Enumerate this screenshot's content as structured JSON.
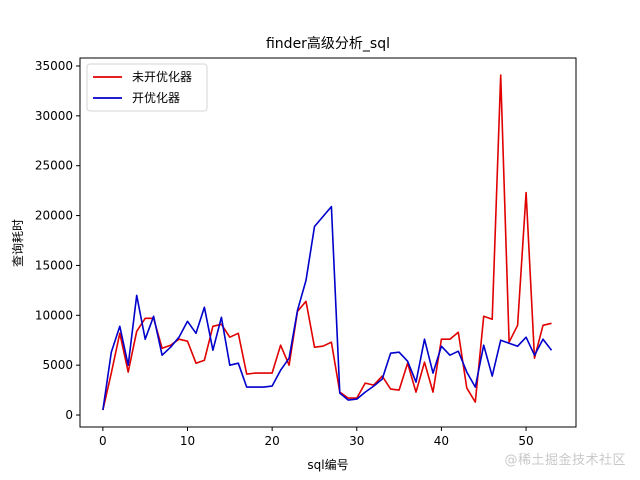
{
  "chart_data": {
    "type": "line",
    "title": "finder高级分析_sql",
    "xlabel": "sql编号",
    "ylabel": "查询耗时",
    "xlim": [
      -2.7,
      55.9
    ],
    "ylim": [
      -1200,
      35800
    ],
    "xticks": [
      0,
      10,
      20,
      30,
      40,
      50
    ],
    "yticks": [
      0,
      5000,
      10000,
      15000,
      20000,
      25000,
      30000,
      35000
    ],
    "grid": false,
    "legend_position": "upper left",
    "x": [
      0,
      1,
      2,
      3,
      4,
      5,
      6,
      7,
      8,
      9,
      10,
      11,
      12,
      13,
      14,
      15,
      16,
      17,
      18,
      19,
      20,
      21,
      22,
      23,
      24,
      25,
      26,
      27,
      28,
      29,
      30,
      31,
      32,
      33,
      34,
      35,
      36,
      37,
      38,
      39,
      40,
      41,
      42,
      43,
      44,
      45,
      46,
      47,
      48,
      49,
      50,
      51,
      52,
      53
    ],
    "series": [
      {
        "name": "未开优化器",
        "color": "#e00000",
        "values": [
          500,
          4200,
          8200,
          4300,
          8400,
          9700,
          9700,
          6700,
          7000,
          7600,
          7400,
          5200,
          5500,
          8900,
          9100,
          7800,
          8200,
          4100,
          4200,
          4200,
          4200,
          7000,
          5000,
          10400,
          11400,
          6800,
          6900,
          7300,
          2300,
          1700,
          1700,
          3200,
          3000,
          3900,
          2600,
          2500,
          5200,
          2300,
          5300,
          2300,
          7600,
          7600,
          8300,
          2700,
          1300,
          9900,
          9600,
          34100,
          7300,
          9000,
          22300,
          5700,
          9000,
          9200
        ]
      },
      {
        "name": "开优化器",
        "color": "#0000cc",
        "values": [
          500,
          6300,
          8900,
          5000,
          12000,
          7600,
          9900,
          6000,
          6800,
          7800,
          9400,
          8200,
          10800,
          6500,
          9800,
          5000,
          5200,
          2800,
          2800,
          2800,
          2900,
          4500,
          5700,
          10500,
          13500,
          18900,
          19900,
          20900,
          2200,
          1500,
          1600,
          2300,
          2900,
          3600,
          6200,
          6300,
          5400,
          3300,
          7600,
          4200,
          6900,
          6000,
          6400,
          4300,
          2800,
          7000,
          3900,
          7500,
          7200,
          6900,
          7800,
          6000,
          7600,
          6500
        ]
      }
    ]
  },
  "watermark": "@稀土掘金技术社区"
}
